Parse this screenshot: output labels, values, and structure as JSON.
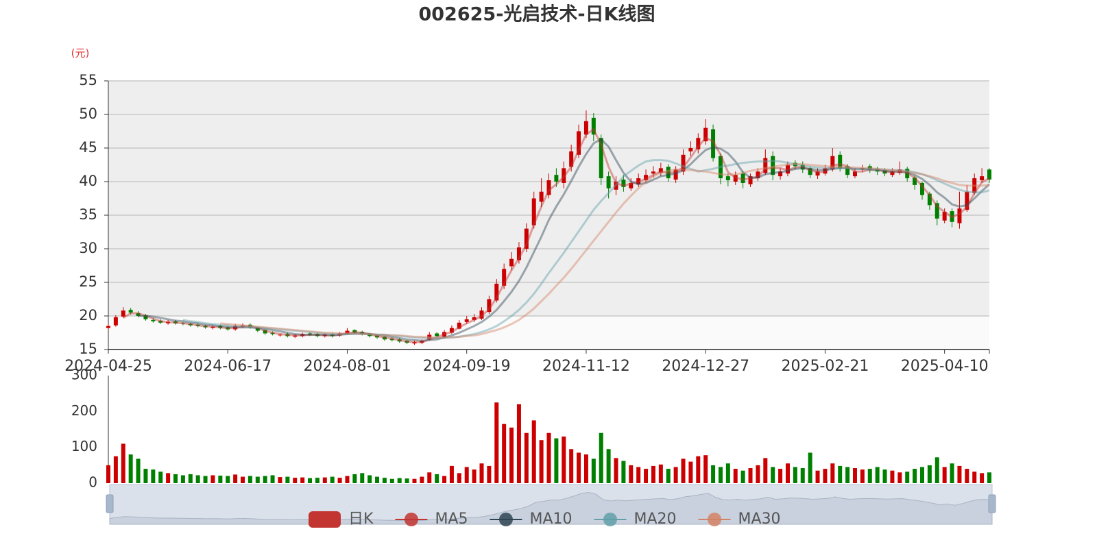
{
  "chart_data": {
    "type": "candlestick",
    "title": "002625-光启技术-日K线图",
    "y_unit": "(元)",
    "categories": [
      "2024-04-25",
      null,
      null,
      null,
      null,
      null,
      null,
      null,
      null,
      null,
      null,
      null,
      null,
      null,
      null,
      null,
      "2024-06-17",
      null,
      null,
      null,
      null,
      null,
      null,
      null,
      null,
      null,
      null,
      null,
      null,
      null,
      null,
      null,
      "2024-08-01",
      null,
      null,
      null,
      null,
      null,
      null,
      null,
      null,
      null,
      null,
      null,
      null,
      null,
      null,
      null,
      "2024-09-19",
      null,
      null,
      null,
      null,
      null,
      null,
      null,
      null,
      null,
      null,
      null,
      null,
      null,
      null,
      null,
      "2024-11-12",
      null,
      null,
      null,
      null,
      null,
      null,
      null,
      null,
      null,
      null,
      null,
      null,
      null,
      null,
      null,
      "2024-12-27",
      null,
      null,
      null,
      null,
      null,
      null,
      null,
      null,
      null,
      null,
      null,
      null,
      null,
      null,
      null,
      "2025-02-21",
      null,
      null,
      null,
      null,
      null,
      null,
      null,
      null,
      null,
      null,
      null,
      null,
      null,
      null,
      null,
      "2025-04-10",
      null,
      null,
      null,
      null,
      null,
      null
    ],
    "ylim": [
      15,
      55
    ],
    "yticks": [
      15,
      20,
      25,
      30,
      35,
      40,
      45,
      50,
      55
    ],
    "series": [
      {
        "name": "日K",
        "color": "#c23531",
        "up_color": "#cc0000",
        "down_color": "#008000",
        "open": [
          18.2,
          18.6,
          19.9,
          20.9,
          20.4,
          20.1,
          19.4,
          19.3,
          18.9,
          19.2,
          18.9,
          18.8,
          18.7,
          18.5,
          18.2,
          18.5,
          18.3,
          18.0,
          18.4,
          18.7,
          18.2,
          17.9,
          17.5,
          17.1,
          17.3,
          16.9,
          17.0,
          17.4,
          17.3,
          17.0,
          17.3,
          17.1,
          17.3,
          17.9,
          17.6,
          17.4,
          17.1,
          16.9,
          16.6,
          16.5,
          16.3,
          15.9,
          16.0,
          16.5,
          17.4,
          16.9,
          17.5,
          18.1,
          19.1,
          19.4,
          19.6,
          20.6,
          22.3,
          24.5,
          27.4,
          28.3,
          30.0,
          33.5,
          37.0,
          38.0,
          41.0,
          39.8,
          42.2,
          44.0,
          47.0,
          49.5,
          46.5,
          40.8,
          38.8,
          40.3,
          39.0,
          39.6,
          40.2,
          41.2,
          41.3,
          42.2,
          40.3,
          41.5,
          44.5,
          44.8,
          46.0,
          47.8,
          43.8,
          40.8,
          40.0,
          41.2,
          39.6,
          40.5,
          41.3,
          43.8,
          40.8,
          41.2,
          42.8,
          42.5,
          42.0,
          40.9,
          41.2,
          41.8,
          44.0,
          42.3,
          40.8,
          41.8,
          42.3,
          41.9,
          41.7,
          41.0,
          41.3,
          41.9,
          40.6,
          39.8,
          38.2,
          36.8,
          34.2,
          35.6,
          33.8,
          35.8,
          38.3,
          40.2,
          41.8
        ],
        "close": [
          18.5,
          19.8,
          20.8,
          20.5,
          20.0,
          19.5,
          19.2,
          19.0,
          19.1,
          18.9,
          18.8,
          18.6,
          18.5,
          18.3,
          18.4,
          18.2,
          18.0,
          18.5,
          18.6,
          18.3,
          17.8,
          17.4,
          17.3,
          17.2,
          17.0,
          17.1,
          17.3,
          17.2,
          17.0,
          17.2,
          17.0,
          17.4,
          17.8,
          17.5,
          17.3,
          17.0,
          16.8,
          16.5,
          16.4,
          16.2,
          16.0,
          16.1,
          16.3,
          17.2,
          17.0,
          17.6,
          18.2,
          19.0,
          19.5,
          19.8,
          20.8,
          22.5,
          24.8,
          27.0,
          28.5,
          30.2,
          33.0,
          37.5,
          38.5,
          40.2,
          40.0,
          42.0,
          44.5,
          47.5,
          49.0,
          47.0,
          40.5,
          39.0,
          40.0,
          39.2,
          39.8,
          40.5,
          41.0,
          41.5,
          42.0,
          40.5,
          41.8,
          44.0,
          45.0,
          46.5,
          48.0,
          43.5,
          40.5,
          40.2,
          41.0,
          39.8,
          40.8,
          41.5,
          43.5,
          41.0,
          41.5,
          42.5,
          42.3,
          41.8,
          41.0,
          41.5,
          42.0,
          43.8,
          42.0,
          41.0,
          41.5,
          42.0,
          41.8,
          41.5,
          41.2,
          41.5,
          41.8,
          40.5,
          39.5,
          38.0,
          36.5,
          34.5,
          35.5,
          34.0,
          36.0,
          38.5,
          40.5,
          40.8,
          40.3
        ],
        "low": [
          18.0,
          18.4,
          19.7,
          20.2,
          19.8,
          19.3,
          19.0,
          18.8,
          18.7,
          18.7,
          18.6,
          18.4,
          18.3,
          18.1,
          18.0,
          18.0,
          17.8,
          17.8,
          18.2,
          18.1,
          17.6,
          17.2,
          17.1,
          16.9,
          16.8,
          16.7,
          16.8,
          17.0,
          16.8,
          16.8,
          16.8,
          16.9,
          17.2,
          17.3,
          17.1,
          16.8,
          16.6,
          16.3,
          16.2,
          16.0,
          15.8,
          15.7,
          15.8,
          16.4,
          16.8,
          16.7,
          17.3,
          18.0,
          18.8,
          19.1,
          19.4,
          20.3,
          22.0,
          24.0,
          26.8,
          27.8,
          29.5,
          33.0,
          36.2,
          37.5,
          39.2,
          39.0,
          41.5,
          43.5,
          46.5,
          46.0,
          39.5,
          37.5,
          38.0,
          38.5,
          38.6,
          39.2,
          39.8,
          40.6,
          40.8,
          40.0,
          39.8,
          41.0,
          43.8,
          44.2,
          45.5,
          43.0,
          39.6,
          39.3,
          39.5,
          39.0,
          39.2,
          40.1,
          41.0,
          40.2,
          40.3,
          40.8,
          41.8,
          41.3,
          40.5,
          40.4,
          40.9,
          41.5,
          41.5,
          40.5,
          40.5,
          41.4,
          41.3,
          41.0,
          40.8,
          40.7,
          41.0,
          40.0,
          38.8,
          37.3,
          35.8,
          33.5,
          33.8,
          33.2,
          33.0,
          35.5,
          38.0,
          39.8,
          39.8
        ],
        "high": [
          18.8,
          20.1,
          21.3,
          21.2,
          20.7,
          20.3,
          19.7,
          19.5,
          19.4,
          19.4,
          19.1,
          19.0,
          18.9,
          18.7,
          18.6,
          18.7,
          18.5,
          18.8,
          18.9,
          18.9,
          18.4,
          18.0,
          17.7,
          17.4,
          17.5,
          17.3,
          17.5,
          17.6,
          17.5,
          17.4,
          17.5,
          17.6,
          18.2,
          18.0,
          17.8,
          17.5,
          17.2,
          17.0,
          16.8,
          16.7,
          16.4,
          16.3,
          16.5,
          17.6,
          17.6,
          17.9,
          18.6,
          19.4,
          20.0,
          20.3,
          21.3,
          23.0,
          25.5,
          27.8,
          29.5,
          31.0,
          33.8,
          38.5,
          40.5,
          41.2,
          42.0,
          43.0,
          45.5,
          48.5,
          50.6,
          50.2,
          47.0,
          41.5,
          40.8,
          41.0,
          40.5,
          41.2,
          41.8,
          42.3,
          42.8,
          42.6,
          42.3,
          44.8,
          46.0,
          47.2,
          49.3,
          48.5,
          44.2,
          41.2,
          41.5,
          41.6,
          41.2,
          42.0,
          44.8,
          44.5,
          42.0,
          43.0,
          43.2,
          43.0,
          42.3,
          42.0,
          42.5,
          45.0,
          44.5,
          42.6,
          42.0,
          42.5,
          42.6,
          42.2,
          42.0,
          42.0,
          43.0,
          42.2,
          40.9,
          40.0,
          38.5,
          37.2,
          36.0,
          36.0,
          38.5,
          39.5,
          41.2,
          42.0,
          42.0
        ]
      },
      {
        "name": "MA5",
        "color": "#c23531",
        "values": [
          null,
          null,
          19.7,
          20.4,
          20.4,
          20.0,
          19.6,
          19.2,
          19.1,
          19.0,
          18.9,
          18.8,
          18.6,
          18.5,
          18.4,
          18.3,
          18.2,
          18.2,
          18.4,
          18.5,
          18.2,
          17.8,
          17.5,
          17.3,
          17.2,
          17.1,
          17.1,
          17.2,
          17.2,
          17.1,
          17.1,
          17.2,
          17.4,
          17.6,
          17.5,
          17.3,
          17.0,
          16.8,
          16.6,
          16.4,
          16.2,
          16.1,
          16.1,
          16.5,
          16.8,
          17.3,
          17.6,
          18.3,
          18.9,
          19.4,
          20.0,
          21.0,
          22.7,
          24.8,
          26.8,
          28.6,
          30.6,
          33.6,
          36.3,
          38.7,
          39.6,
          40.7,
          42.2,
          44.7,
          47.0,
          47.8,
          45.5,
          42.2,
          39.8,
          39.4,
          39.7,
          40.0,
          40.4,
          41.0,
          41.5,
          41.3,
          41.4,
          42.1,
          43.6,
          45.2,
          46.5,
          46.0,
          44.0,
          41.4,
          40.6,
          40.3,
          40.5,
          40.7,
          41.9,
          42.0,
          42.0,
          41.7,
          42.1,
          42.2,
          41.7,
          41.4,
          41.5,
          42.4,
          42.6,
          42.3,
          41.5,
          41.5,
          41.8,
          41.8,
          41.5,
          41.4,
          41.5,
          41.3,
          40.6,
          39.3,
          38.0,
          36.3,
          35.5,
          34.7,
          35.2,
          36.2,
          38.3,
          39.9,
          40.5
        ]
      },
      {
        "name": "MA10",
        "color": "#2f4554",
        "values": [
          null,
          null,
          null,
          null,
          20.0,
          20.0,
          19.9,
          19.7,
          19.5,
          19.3,
          19.2,
          19.0,
          18.9,
          18.7,
          18.6,
          18.5,
          18.4,
          18.3,
          18.3,
          18.3,
          18.2,
          18.1,
          17.9,
          17.7,
          17.5,
          17.3,
          17.2,
          17.2,
          17.2,
          17.2,
          17.1,
          17.2,
          17.3,
          17.4,
          17.4,
          17.3,
          17.2,
          17.1,
          16.9,
          16.7,
          16.5,
          16.4,
          16.3,
          16.4,
          16.5,
          16.8,
          17.1,
          17.5,
          18.0,
          18.5,
          19.1,
          19.9,
          20.9,
          22.2,
          23.6,
          25.2,
          27.2,
          29.5,
          31.8,
          34.3,
          36.3,
          38.1,
          40.1,
          42.2,
          44.1,
          45.7,
          46.3,
          45.2,
          43.2,
          41.3,
          40.0,
          39.6,
          39.8,
          40.3,
          40.8,
          41.0,
          41.2,
          41.7,
          42.6,
          43.7,
          44.7,
          45.1,
          44.9,
          44.2,
          43.0,
          41.4,
          40.6,
          40.6,
          41.1,
          41.3,
          41.4,
          41.6,
          41.9,
          42.0,
          41.9,
          41.7,
          41.7,
          41.9,
          42.0,
          42.0,
          41.9,
          41.9,
          41.8,
          41.7,
          41.6,
          41.5,
          41.5,
          41.4,
          41.0,
          40.4,
          39.5,
          38.4,
          37.6,
          36.6,
          36.3,
          36.5,
          37.5,
          38.6,
          39.6
        ]
      },
      {
        "name": "MA20",
        "color": "#61a0a8",
        "values": [
          null,
          null,
          null,
          null,
          null,
          null,
          null,
          null,
          null,
          null,
          19.4,
          19.2,
          19.1,
          18.9,
          18.8,
          18.7,
          18.6,
          18.5,
          18.5,
          18.4,
          18.3,
          18.2,
          18.1,
          18.0,
          17.9,
          17.8,
          17.7,
          17.6,
          17.5,
          17.4,
          17.3,
          17.3,
          17.3,
          17.3,
          17.3,
          17.3,
          17.2,
          17.2,
          17.1,
          17.0,
          16.9,
          16.8,
          16.7,
          16.7,
          16.7,
          16.7,
          16.8,
          16.9,
          17.1,
          17.3,
          17.6,
          18.0,
          18.5,
          19.2,
          20.0,
          20.9,
          22.0,
          23.3,
          24.8,
          26.4,
          27.9,
          29.4,
          31.0,
          32.6,
          34.2,
          35.8,
          37.1,
          38.3,
          39.5,
          40.8,
          41.6,
          42.4,
          43.0,
          43.2,
          43.2,
          43.1,
          42.7,
          42.3,
          41.9,
          41.5,
          41.7,
          41.9,
          42.2,
          42.4,
          42.6,
          42.8,
          42.9,
          43.0,
          43.0,
          43.1,
          43.0,
          42.8,
          42.6,
          42.4,
          42.2,
          42.1,
          42.0,
          42.0,
          42.0,
          42.0,
          41.9,
          41.9,
          41.9,
          41.8,
          41.8,
          41.7,
          41.7,
          41.6,
          41.4,
          41.1,
          40.7,
          40.2,
          39.7,
          39.2,
          38.8,
          38.5,
          38.4,
          38.4,
          38.7
        ]
      },
      {
        "name": "MA30",
        "color": "#d48265",
        "values": [
          null,
          null,
          null,
          null,
          null,
          null,
          null,
          null,
          null,
          null,
          null,
          null,
          null,
          null,
          null,
          18.9,
          18.8,
          18.7,
          18.6,
          18.5,
          18.4,
          18.3,
          18.2,
          18.1,
          18.0,
          17.9,
          17.8,
          17.7,
          17.6,
          17.5,
          17.5,
          17.4,
          17.4,
          17.4,
          17.3,
          17.3,
          17.2,
          17.2,
          17.1,
          17.1,
          17.0,
          16.9,
          16.9,
          16.8,
          16.8,
          16.8,
          16.8,
          16.9,
          17.0,
          17.1,
          17.3,
          17.6,
          17.9,
          18.3,
          18.8,
          19.4,
          20.2,
          21.1,
          22.2,
          23.3,
          24.5,
          25.7,
          27.0,
          28.4,
          29.8,
          31.2,
          32.6,
          34.0,
          35.4,
          36.7,
          37.9,
          39.0,
          40.0,
          40.8,
          41.3,
          41.6,
          41.8,
          41.8,
          41.7,
          41.6,
          41.5,
          41.3,
          41.1,
          41.0,
          41.1,
          41.3,
          41.6,
          41.8,
          42.0,
          42.2,
          42.4,
          42.5,
          42.6,
          42.6,
          42.5,
          42.4,
          42.3,
          42.2,
          42.2,
          42.1,
          42.1,
          42.0,
          42.0,
          41.9,
          41.8,
          41.7,
          41.6,
          41.5,
          41.3,
          41.1,
          40.8,
          40.5,
          40.1,
          39.8,
          39.5,
          39.4,
          39.4,
          39.4,
          39.5
        ]
      }
    ],
    "volume": {
      "ylim": [
        0,
        300
      ],
      "yticks": [
        0,
        100,
        200,
        300
      ],
      "values": [
        50,
        75,
        110,
        80,
        68,
        40,
        38,
        32,
        28,
        25,
        22,
        25,
        22,
        20,
        22,
        21,
        20,
        24,
        18,
        20,
        18,
        20,
        22,
        17,
        18,
        15,
        16,
        14,
        15,
        16,
        18,
        15,
        20,
        25,
        28,
        22,
        18,
        15,
        12,
        14,
        13,
        12,
        18,
        30,
        25,
        20,
        48,
        28,
        45,
        38,
        55,
        48,
        225,
        165,
        155,
        220,
        140,
        175,
        120,
        140,
        125,
        130,
        95,
        85,
        80,
        68,
        140,
        95,
        70,
        62,
        50,
        45,
        40,
        48,
        52,
        40,
        45,
        68,
        60,
        75,
        78,
        50,
        45,
        55,
        40,
        35,
        42,
        50,
        70,
        45,
        40,
        55,
        45,
        42,
        85,
        35,
        40,
        55,
        48,
        45,
        42,
        38,
        40,
        45,
        38,
        35,
        30,
        32,
        40,
        45,
        50,
        72,
        45,
        55,
        48,
        40,
        32,
        28,
        30
      ]
    },
    "grid": true
  }
}
